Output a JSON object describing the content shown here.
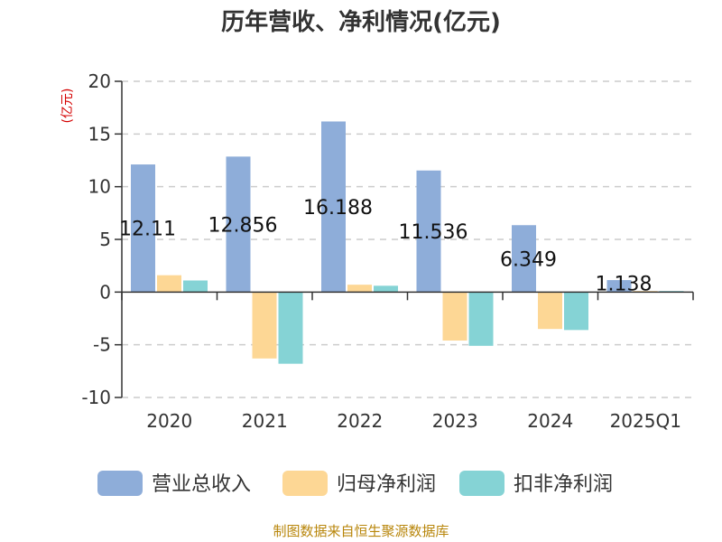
{
  "chart_data": {
    "type": "bar",
    "title": "历年营收、净利情况(亿元)",
    "unit_label": "(亿元)",
    "categories": [
      "2020",
      "2021",
      "2022",
      "2023",
      "2024",
      "2025Q1"
    ],
    "ylim": [
      -10,
      20
    ],
    "yticks": [
      20,
      15,
      10,
      5,
      0,
      -5,
      -10
    ],
    "grid": true,
    "legend_position": "bottom",
    "series": [
      {
        "name": "营业总收入",
        "color": "#8eadd9",
        "values": [
          12.11,
          12.856,
          16.188,
          11.536,
          6.349,
          1.138
        ]
      },
      {
        "name": "归母净利润",
        "color": "#fdd795",
        "values": [
          1.6,
          -6.3,
          0.7,
          -4.6,
          -3.5,
          0.1
        ]
      },
      {
        "name": "扣非净利润",
        "color": "#85d3d5",
        "values": [
          1.1,
          -6.8,
          0.6,
          -5.1,
          -3.6,
          0.1
        ]
      }
    ],
    "data_labels": [
      "12.11",
      "12.856",
      "16.188",
      "11.536",
      "6.349",
      "1.138"
    ]
  },
  "footer": {
    "source": "制图数据来自恒生聚源数据库"
  }
}
